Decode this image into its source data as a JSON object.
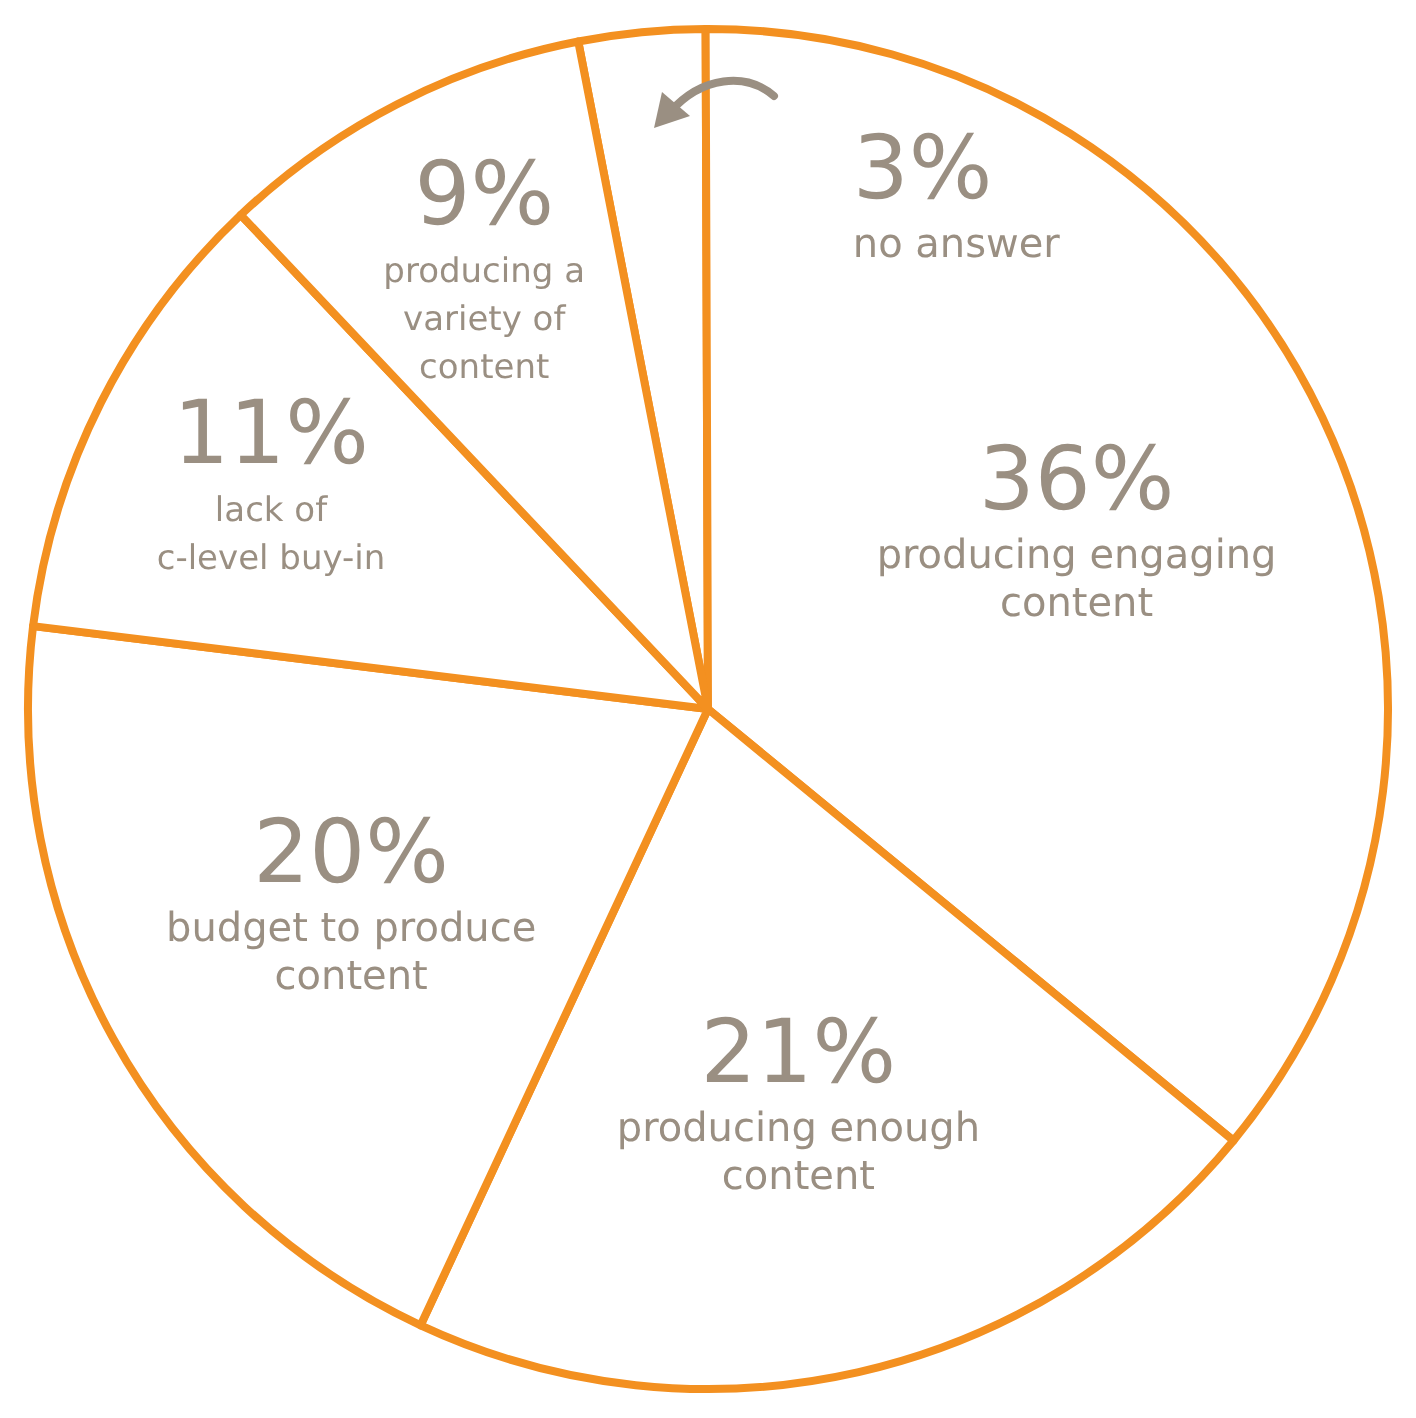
{
  "chart_data": {
    "type": "pie",
    "categories": [
      "no answer",
      "producing engaging content",
      "producing enough content",
      "budget to produce content",
      "lack of c-level buy-in",
      "producing a variety of content"
    ],
    "values": [
      3,
      36,
      21,
      20,
      11,
      9
    ],
    "value_labels": [
      "3%",
      "36%",
      "21%",
      "20%",
      "11%",
      "9%"
    ],
    "colors": [
      "#ffffff",
      "#ffffff",
      "#ffffff",
      "#ffffff",
      "#ffffff",
      "#ffffff"
    ],
    "legend": false
  }
}
